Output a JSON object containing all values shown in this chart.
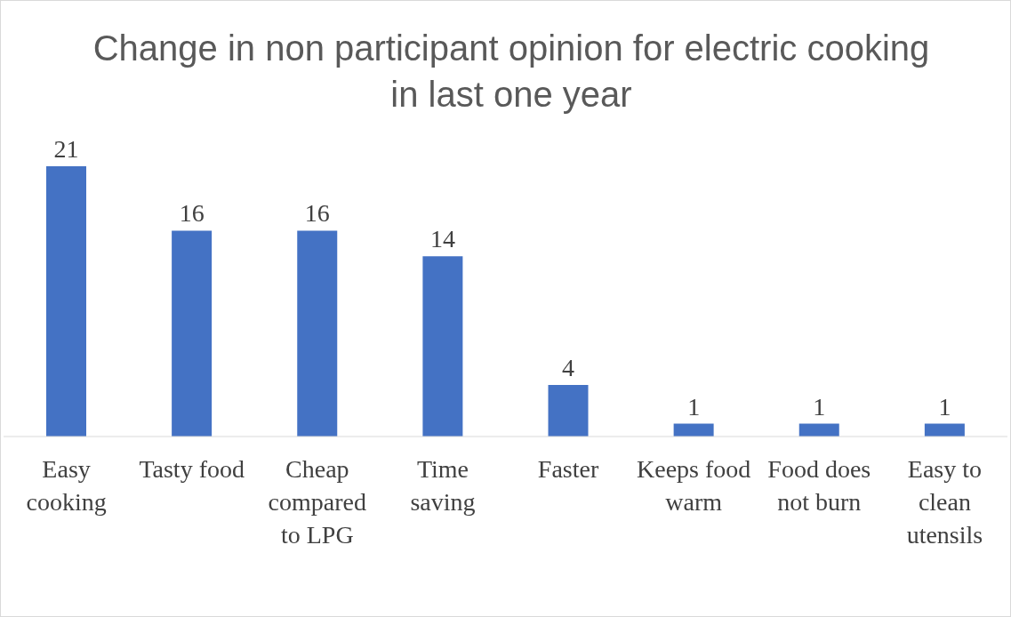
{
  "chart_data": {
    "type": "bar",
    "title": "Change in non participant opinion for electric cooking in last one year",
    "categories": [
      "Easy cooking",
      "Tasty food",
      "Cheap compared to LPG",
      "Time saving",
      "Faster",
      "Keeps food warm",
      "Food does not burn",
      "Easy to clean utensils"
    ],
    "values": [
      21,
      16,
      16,
      14,
      4,
      1,
      1,
      1
    ],
    "color": "#4472c4",
    "data_labels": true,
    "grid": false,
    "legend": false
  }
}
